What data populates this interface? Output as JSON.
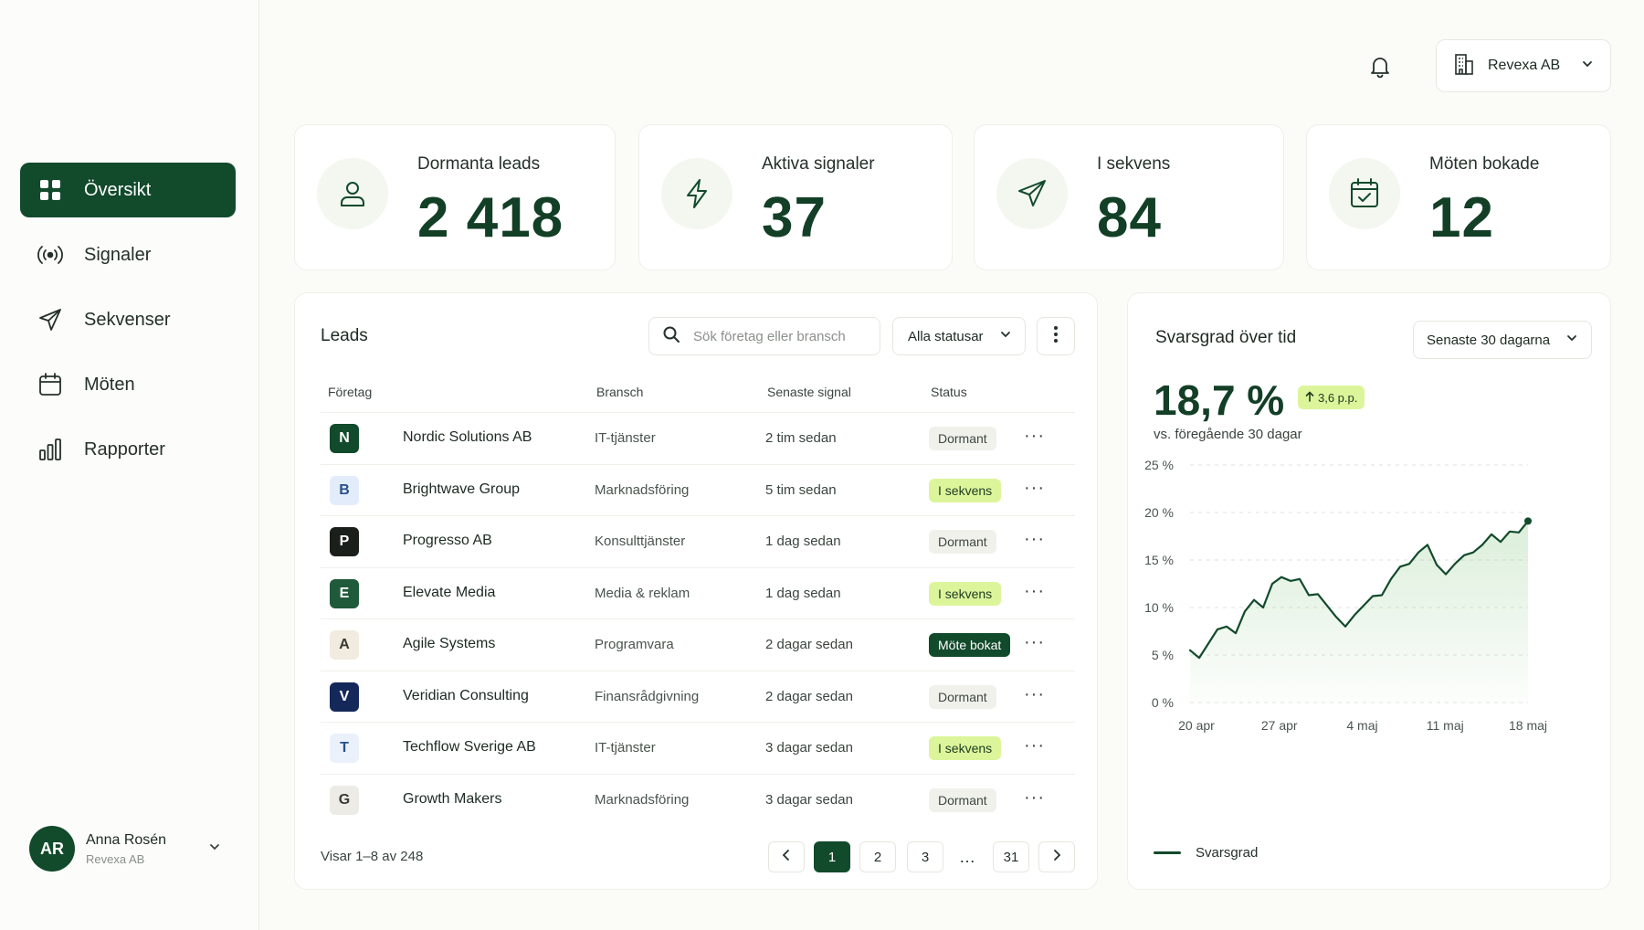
{
  "colors": {
    "brand": "#124a2c",
    "accent_lime": "#dcf59b",
    "background": "#fbfbf8",
    "card": "#ffffff"
  },
  "topbar": {
    "notification_icon": "bell-icon",
    "org": {
      "icon": "building-icon",
      "label": "Revexa AB"
    }
  },
  "sidebar": {
    "items": [
      {
        "label": "Översikt",
        "icon": "grid-icon",
        "active": true
      },
      {
        "label": "Signaler",
        "icon": "broadcast-icon",
        "active": false
      },
      {
        "label": "Sekvenser",
        "icon": "send-icon",
        "active": false
      },
      {
        "label": "Möten",
        "icon": "calendar-icon",
        "active": false
      },
      {
        "label": "Rapporter",
        "icon": "bar-chart-icon",
        "active": false
      }
    ],
    "user": {
      "initials": "AR",
      "name": "Anna Rosén",
      "org": "Revexa AB"
    }
  },
  "kpis": [
    {
      "label": "Dormanta leads",
      "value": "2 418",
      "icon": "user-icon"
    },
    {
      "label": "Aktiva signaler",
      "value": "37",
      "icon": "lightning-icon"
    },
    {
      "label": "I sekvens",
      "value": "84",
      "icon": "send-icon"
    },
    {
      "label": "Möten bokade",
      "value": "12",
      "icon": "calendar-check-icon"
    }
  ],
  "leads": {
    "title": "Leads",
    "search_placeholder": "Sök företag eller bransch",
    "status_filter": "Alla statusar",
    "columns": [
      "Företag",
      "Bransch",
      "Senaste signal",
      "Status"
    ],
    "rows": [
      {
        "initial": "N",
        "company": "Nordic Solutions AB",
        "industry": "IT-tjänster",
        "signal": "2 tim sedan",
        "status": "Dormant",
        "status_kind": "dormant",
        "logo_bg": "#124a2c",
        "logo_fg": "#ffffff"
      },
      {
        "initial": "B",
        "company": "Brightwave Group",
        "industry": "Marknadsföring",
        "signal": "5 tim sedan",
        "status": "I sekvens",
        "status_kind": "seq",
        "logo_bg": "#e3ecfa",
        "logo_fg": "#2b4f8a"
      },
      {
        "initial": "P",
        "company": "Progresso AB",
        "industry": "Konsulttjänster",
        "signal": "1 dag sedan",
        "status": "Dormant",
        "status_kind": "dormant",
        "logo_bg": "#1b1f1c",
        "logo_fg": "#ffffff"
      },
      {
        "initial": "E",
        "company": "Elevate Media",
        "industry": "Media & reklam",
        "signal": "1 dag sedan",
        "status": "I sekvens",
        "status_kind": "seq",
        "logo_bg": "#1f5a3b",
        "logo_fg": "#ffffff"
      },
      {
        "initial": "A",
        "company": "Agile Systems",
        "industry": "Programvara",
        "signal": "2 dagar sedan",
        "status": "Möte bokat",
        "status_kind": "meet",
        "logo_bg": "#f1ebe0",
        "logo_fg": "#3a3a32"
      },
      {
        "initial": "V",
        "company": "Veridian Consulting",
        "industry": "Finansrådgivning",
        "signal": "2 dagar sedan",
        "status": "Dormant",
        "status_kind": "dormant",
        "logo_bg": "#14285a",
        "logo_fg": "#ffffff"
      },
      {
        "initial": "T",
        "company": "Techflow Sverige AB",
        "industry": "IT-tjänster",
        "signal": "3 dagar sedan",
        "status": "I sekvens",
        "status_kind": "seq",
        "logo_bg": "#eaf1fb",
        "logo_fg": "#2b4f8a"
      },
      {
        "initial": "G",
        "company": "Growth Makers",
        "industry": "Marknadsföring",
        "signal": "3 dagar sedan",
        "status": "Dormant",
        "status_kind": "dormant",
        "logo_bg": "#ecebe6",
        "logo_fg": "#3a3a32"
      }
    ],
    "showing": "Visar 1–8 av 248",
    "pagination": [
      "1",
      "2",
      "3",
      "…",
      "31"
    ],
    "current_page": "1"
  },
  "rate_panel": {
    "title": "Svarsgrad över tid",
    "range": "Senaste 30 dagarna",
    "value": "18,7 %",
    "delta": "3,6 p.p.",
    "comparison": "vs. föregående 30 dagar",
    "legend": "Svarsgrad"
  },
  "chart_data": {
    "type": "area",
    "title": "Svarsgrad över tid",
    "x_ticks": [
      "20 apr",
      "27 apr",
      "4 maj",
      "11 maj",
      "18 maj"
    ],
    "y_ticks": [
      "0 %",
      "5 %",
      "10 %",
      "15 %",
      "20 %",
      "25 %"
    ],
    "ylim": [
      0,
      25
    ],
    "grid": true,
    "legend_position": "bottom-left",
    "series": [
      {
        "name": "Svarsgrad",
        "values": [
          5.5,
          4.7,
          6.2,
          7.7,
          8.0,
          7.3,
          9.6,
          10.8,
          10.0,
          12.5,
          13.2,
          12.8,
          13.0,
          11.3,
          11.4,
          10.2,
          9.0,
          8.0,
          9.2,
          10.2,
          11.2,
          11.3,
          13.0,
          14.3,
          14.6,
          15.8,
          16.6,
          14.5,
          13.5,
          14.6,
          15.5,
          15.8,
          16.6,
          17.7,
          16.9,
          18.0,
          17.9,
          19.1
        ]
      }
    ]
  }
}
